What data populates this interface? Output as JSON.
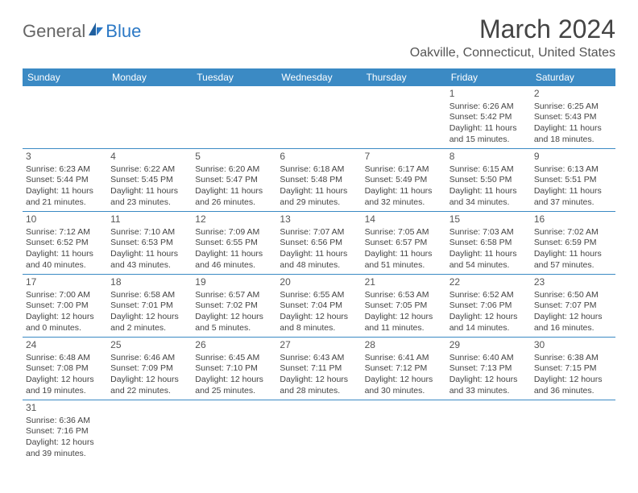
{
  "logo": {
    "general": "General",
    "blue": "Blue"
  },
  "title": "March 2024",
  "location": "Oakville, Connecticut, United States",
  "weekdays": [
    "Sunday",
    "Monday",
    "Tuesday",
    "Wednesday",
    "Thursday",
    "Friday",
    "Saturday"
  ],
  "colors": {
    "header_bg": "#3b8ac4",
    "header_text": "#ffffff",
    "border": "#3b8ac4",
    "text": "#444444",
    "title": "#444444",
    "location": "#555555"
  },
  "layout": {
    "first_weekday_index": 5,
    "days_in_month": 31,
    "columns": 7,
    "rows": 6
  },
  "days": [
    {
      "n": 1,
      "sunrise": "6:26 AM",
      "sunset": "5:42 PM",
      "daylight": "11 hours and 15 minutes."
    },
    {
      "n": 2,
      "sunrise": "6:25 AM",
      "sunset": "5:43 PM",
      "daylight": "11 hours and 18 minutes."
    },
    {
      "n": 3,
      "sunrise": "6:23 AM",
      "sunset": "5:44 PM",
      "daylight": "11 hours and 21 minutes."
    },
    {
      "n": 4,
      "sunrise": "6:22 AM",
      "sunset": "5:45 PM",
      "daylight": "11 hours and 23 minutes."
    },
    {
      "n": 5,
      "sunrise": "6:20 AM",
      "sunset": "5:47 PM",
      "daylight": "11 hours and 26 minutes."
    },
    {
      "n": 6,
      "sunrise": "6:18 AM",
      "sunset": "5:48 PM",
      "daylight": "11 hours and 29 minutes."
    },
    {
      "n": 7,
      "sunrise": "6:17 AM",
      "sunset": "5:49 PM",
      "daylight": "11 hours and 32 minutes."
    },
    {
      "n": 8,
      "sunrise": "6:15 AM",
      "sunset": "5:50 PM",
      "daylight": "11 hours and 34 minutes."
    },
    {
      "n": 9,
      "sunrise": "6:13 AM",
      "sunset": "5:51 PM",
      "daylight": "11 hours and 37 minutes."
    },
    {
      "n": 10,
      "sunrise": "7:12 AM",
      "sunset": "6:52 PM",
      "daylight": "11 hours and 40 minutes."
    },
    {
      "n": 11,
      "sunrise": "7:10 AM",
      "sunset": "6:53 PM",
      "daylight": "11 hours and 43 minutes."
    },
    {
      "n": 12,
      "sunrise": "7:09 AM",
      "sunset": "6:55 PM",
      "daylight": "11 hours and 46 minutes."
    },
    {
      "n": 13,
      "sunrise": "7:07 AM",
      "sunset": "6:56 PM",
      "daylight": "11 hours and 48 minutes."
    },
    {
      "n": 14,
      "sunrise": "7:05 AM",
      "sunset": "6:57 PM",
      "daylight": "11 hours and 51 minutes."
    },
    {
      "n": 15,
      "sunrise": "7:03 AM",
      "sunset": "6:58 PM",
      "daylight": "11 hours and 54 minutes."
    },
    {
      "n": 16,
      "sunrise": "7:02 AM",
      "sunset": "6:59 PM",
      "daylight": "11 hours and 57 minutes."
    },
    {
      "n": 17,
      "sunrise": "7:00 AM",
      "sunset": "7:00 PM",
      "daylight": "12 hours and 0 minutes."
    },
    {
      "n": 18,
      "sunrise": "6:58 AM",
      "sunset": "7:01 PM",
      "daylight": "12 hours and 2 minutes."
    },
    {
      "n": 19,
      "sunrise": "6:57 AM",
      "sunset": "7:02 PM",
      "daylight": "12 hours and 5 minutes."
    },
    {
      "n": 20,
      "sunrise": "6:55 AM",
      "sunset": "7:04 PM",
      "daylight": "12 hours and 8 minutes."
    },
    {
      "n": 21,
      "sunrise": "6:53 AM",
      "sunset": "7:05 PM",
      "daylight": "12 hours and 11 minutes."
    },
    {
      "n": 22,
      "sunrise": "6:52 AM",
      "sunset": "7:06 PM",
      "daylight": "12 hours and 14 minutes."
    },
    {
      "n": 23,
      "sunrise": "6:50 AM",
      "sunset": "7:07 PM",
      "daylight": "12 hours and 16 minutes."
    },
    {
      "n": 24,
      "sunrise": "6:48 AM",
      "sunset": "7:08 PM",
      "daylight": "12 hours and 19 minutes."
    },
    {
      "n": 25,
      "sunrise": "6:46 AM",
      "sunset": "7:09 PM",
      "daylight": "12 hours and 22 minutes."
    },
    {
      "n": 26,
      "sunrise": "6:45 AM",
      "sunset": "7:10 PM",
      "daylight": "12 hours and 25 minutes."
    },
    {
      "n": 27,
      "sunrise": "6:43 AM",
      "sunset": "7:11 PM",
      "daylight": "12 hours and 28 minutes."
    },
    {
      "n": 28,
      "sunrise": "6:41 AM",
      "sunset": "7:12 PM",
      "daylight": "12 hours and 30 minutes."
    },
    {
      "n": 29,
      "sunrise": "6:40 AM",
      "sunset": "7:13 PM",
      "daylight": "12 hours and 33 minutes."
    },
    {
      "n": 30,
      "sunrise": "6:38 AM",
      "sunset": "7:15 PM",
      "daylight": "12 hours and 36 minutes."
    },
    {
      "n": 31,
      "sunrise": "6:36 AM",
      "sunset": "7:16 PM",
      "daylight": "12 hours and 39 minutes."
    }
  ],
  "labels": {
    "sunrise": "Sunrise:",
    "sunset": "Sunset:",
    "daylight": "Daylight:"
  }
}
